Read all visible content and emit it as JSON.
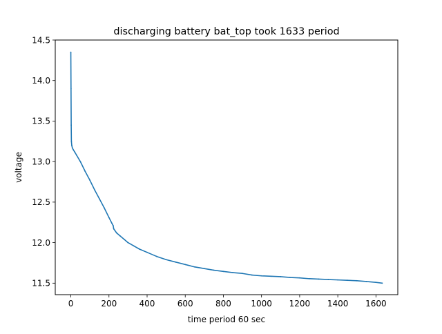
{
  "chart_data": {
    "type": "line",
    "title": "discharging battery bat_top took 1633 period",
    "xlabel": "time period 60 sec",
    "ylabel": "voltage",
    "xlim": [
      -81.65,
      1714.65
    ],
    "ylim": [
      11.358,
      14.5
    ],
    "xticks": [
      0,
      200,
      400,
      600,
      800,
      1000,
      1200,
      1400,
      1600
    ],
    "xtick_labels": [
      "0",
      "200",
      "400",
      "600",
      "800",
      "1000",
      "1200",
      "1400",
      "1600"
    ],
    "yticks": [
      11.5,
      12.0,
      12.5,
      13.0,
      13.5,
      14.0,
      14.5
    ],
    "ytick_labels": [
      "11.5",
      "12.0",
      "12.5",
      "13.0",
      "13.5",
      "14.0",
      "14.5"
    ],
    "grid": false,
    "series": [
      {
        "color": "#1f77b4",
        "x": [
          0,
          1,
          2,
          3,
          5,
          8,
          12,
          20,
          30,
          50,
          75,
          100,
          125,
          150,
          175,
          200,
          215,
          222,
          225,
          240,
          260,
          280,
          300,
          330,
          360,
          400,
          450,
          500,
          550,
          600,
          650,
          700,
          750,
          800,
          850,
          900,
          950,
          1000,
          1050,
          1100,
          1150,
          1200,
          1250,
          1300,
          1350,
          1400,
          1450,
          1500,
          1550,
          1600,
          1633
        ],
        "y": [
          14.35,
          13.9,
          13.45,
          13.25,
          13.2,
          13.17,
          13.15,
          13.12,
          13.08,
          13.0,
          12.88,
          12.77,
          12.65,
          12.54,
          12.43,
          12.31,
          12.24,
          12.21,
          12.17,
          12.12,
          12.08,
          12.04,
          12.0,
          11.96,
          11.92,
          11.88,
          11.83,
          11.79,
          11.76,
          11.73,
          11.7,
          11.68,
          11.66,
          11.645,
          11.63,
          11.62,
          11.6,
          11.59,
          11.585,
          11.58,
          11.57,
          11.565,
          11.555,
          11.55,
          11.545,
          11.54,
          11.535,
          11.53,
          11.52,
          11.51,
          11.5
        ]
      }
    ]
  }
}
